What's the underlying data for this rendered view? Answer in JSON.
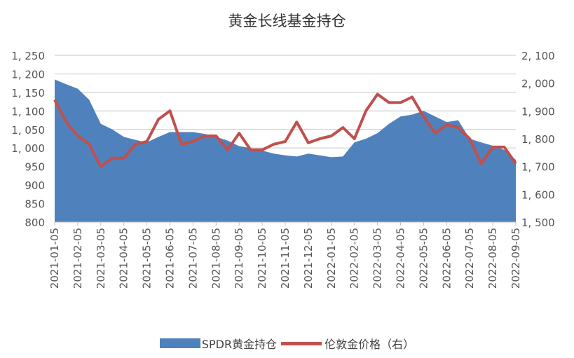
{
  "chart_data": {
    "type": "area+line",
    "title": "黄金长线基金持仓",
    "x_tick_labels": [
      "2021-01-05",
      "2021-02-05",
      "2021-03-05",
      "2021-04-05",
      "2021-05-05",
      "2021-06-05",
      "2021-07-05",
      "2021-08-05",
      "2021-09-05",
      "2021-10-05",
      "2021-11-05",
      "2021-12-05",
      "2022-01-05",
      "2022-02-05",
      "2022-03-05",
      "2022-04-05",
      "2022-05-05",
      "2022-06-05",
      "2022-07-05",
      "2022-08-05",
      "2022-09-05"
    ],
    "left_axis": {
      "ylim": [
        800,
        1250
      ],
      "ticks": [
        "800",
        "850",
        "900",
        "950",
        "1, 000",
        "1, 050",
        "1, 100",
        "1, 150",
        "1, 200",
        "1, 250"
      ]
    },
    "right_axis": {
      "ylim": [
        1500,
        2100
      ],
      "ticks": [
        "1, 500",
        "1, 600",
        "1, 700",
        "1, 800",
        "1, 900",
        "2, 000",
        "2, 100"
      ]
    },
    "x_months_from_start": [
      0,
      0.5,
      1,
      1.5,
      2,
      2.5,
      3,
      3.5,
      4,
      4.5,
      5,
      5.5,
      6,
      6.5,
      7,
      7.5,
      8,
      8.5,
      9,
      9.5,
      10,
      10.5,
      11,
      11.5,
      12,
      12.5,
      13,
      13.5,
      14,
      14.5,
      15,
      15.5,
      16,
      16.5,
      17,
      17.5,
      18,
      18.5,
      19,
      19.5,
      20
    ],
    "series": [
      {
        "name": "SPDR黄金持仓",
        "type": "area",
        "axis": "left",
        "color": "#4f81bd",
        "values": [
          1185,
          1172,
          1160,
          1130,
          1065,
          1050,
          1030,
          1022,
          1015,
          1030,
          1043,
          1043,
          1043,
          1038,
          1030,
          1020,
          1005,
          1000,
          993,
          985,
          980,
          977,
          985,
          980,
          975,
          977,
          1015,
          1025,
          1040,
          1065,
          1085,
          1090,
          1100,
          1085,
          1070,
          1075,
          1025,
          1015,
          1006,
          995,
          968
        ]
      },
      {
        "name": "伦敦金价格（右）",
        "type": "line",
        "axis": "right",
        "color": "#c0504d",
        "values": [
          1940,
          1860,
          1810,
          1780,
          1700,
          1730,
          1730,
          1780,
          1790,
          1870,
          1900,
          1780,
          1790,
          1810,
          1810,
          1760,
          1820,
          1760,
          1760,
          1780,
          1790,
          1860,
          1785,
          1800,
          1810,
          1840,
          1800,
          1900,
          1960,
          1930,
          1930,
          1950,
          1880,
          1820,
          1850,
          1840,
          1800,
          1710,
          1770,
          1770,
          1710
        ]
      }
    ],
    "grid": true,
    "legend": "bottom"
  }
}
